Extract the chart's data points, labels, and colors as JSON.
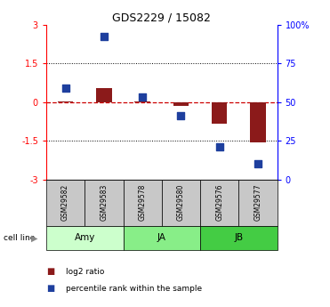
{
  "title": "GDS2229 / 15082",
  "samples": [
    "GSM29582",
    "GSM29583",
    "GSM29578",
    "GSM29580",
    "GSM29576",
    "GSM29577"
  ],
  "log2_ratio": [
    0.02,
    0.55,
    0.02,
    -0.15,
    -0.85,
    -1.55
  ],
  "percentile_rank_scaled": [
    0.55,
    2.55,
    0.18,
    -0.52,
    -1.72,
    -2.38
  ],
  "cell_lines": [
    {
      "label": "Amy",
      "cols": [
        0,
        1
      ],
      "color": "#ccffcc"
    },
    {
      "label": "JA",
      "cols": [
        2,
        3
      ],
      "color": "#88ee88"
    },
    {
      "label": "JB",
      "cols": [
        4,
        5
      ],
      "color": "#44cc44"
    }
  ],
  "ylim": [
    -3,
    3
  ],
  "yticks_left": [
    -3,
    -1.5,
    0,
    1.5,
    3
  ],
  "yticks_right_vals": [
    "0",
    "25",
    "50",
    "75",
    "100%"
  ],
  "yticks_right_pos": [
    -3,
    -1.5,
    0,
    1.5,
    3
  ],
  "bar_color": "#8B1A1A",
  "dot_color": "#1E3F9E",
  "hline_color": "#cc0000",
  "grid_color": "#000000",
  "sample_bg": "#c8c8c8",
  "bar_width": 0.4,
  "dot_size": 28
}
